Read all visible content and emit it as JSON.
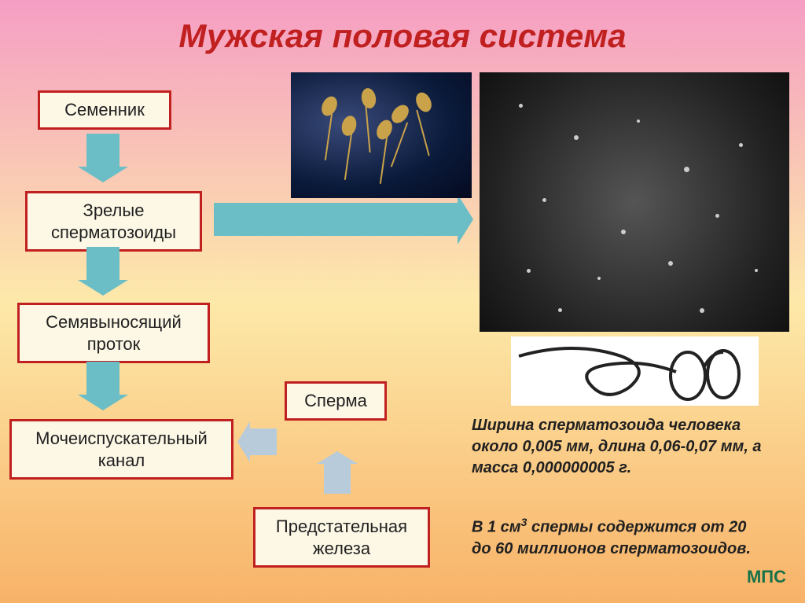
{
  "title": "Мужская половая система",
  "boxes": {
    "b1": "Семенник",
    "b2": "Зрелые\nсперматозоиды",
    "b3": "Семявыносящий\nпроток",
    "b4": "Мочеиспускательный\nканал",
    "b5": "Сперма",
    "b6": "Предстательная\nжелеза"
  },
  "fact1_pre": "Ширина сперматозоида человека около ",
  "fact1_w": "0,005 мм",
  "fact1_mid": ", длина ",
  "fact1_l": "0,06-0,07 мм",
  "fact1_mid2": ", а масса ",
  "fact1_m": "0,000000005 г.",
  "fact2_pre": "В 1 см",
  "fact2_sup": "3",
  "fact2_mid": " спермы содержится от ",
  "fact2_range": "20 до 60 миллионов",
  "fact2_end": " сперматозоидов.",
  "mps": "МПС",
  "colors": {
    "border": "#c02020",
    "box_bg": "#fdf8e6",
    "arrow_main": "#6bbec6",
    "arrow_light": "#b7cbdb"
  }
}
